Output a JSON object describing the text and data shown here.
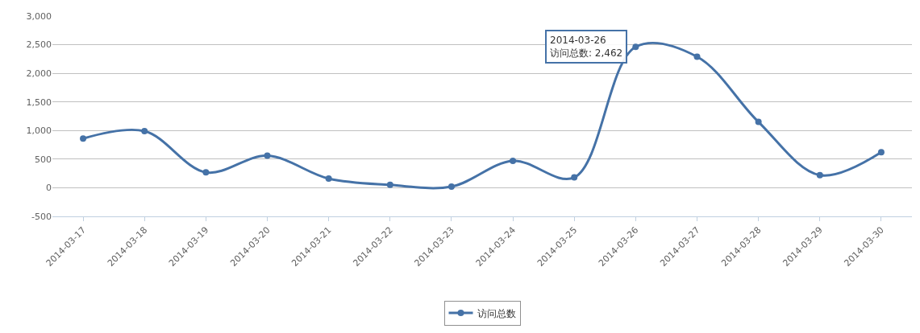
{
  "chart_data": {
    "type": "line",
    "categories": [
      "2014-03-17",
      "2014-03-18",
      "2014-03-19",
      "2014-03-20",
      "2014-03-21",
      "2014-03-22",
      "2014-03-23",
      "2014-03-24",
      "2014-03-25",
      "2014-03-26",
      "2014-03-27",
      "2014-03-28",
      "2014-03-29",
      "2014-03-30"
    ],
    "series": [
      {
        "name": "访问总数",
        "color": "#4572a7",
        "values": [
          860,
          990,
          270,
          560,
          160,
          50,
          20,
          470,
          180,
          2462,
          2290,
          1150,
          220,
          620
        ]
      }
    ],
    "ylim": [
      -500,
      3000
    ],
    "yticks": [
      {
        "value": -500,
        "label": "-500"
      },
      {
        "value": 0,
        "label": "0"
      },
      {
        "value": 500,
        "label": "500"
      },
      {
        "value": 1000,
        "label": "1,000"
      },
      {
        "value": 1500,
        "label": "1,500"
      },
      {
        "value": 2000,
        "label": "2,000"
      },
      {
        "value": 2500,
        "label": "2,500"
      },
      {
        "value": 3000,
        "label": "3,000"
      }
    ],
    "annotations": [
      {
        "text": "2014-03-26\n访问总数: 2,462",
        "x": "2014-03-26",
        "y": 2462
      }
    ],
    "grid": "y",
    "legend": "bottom",
    "marker": "circle",
    "line_style": "solid"
  }
}
